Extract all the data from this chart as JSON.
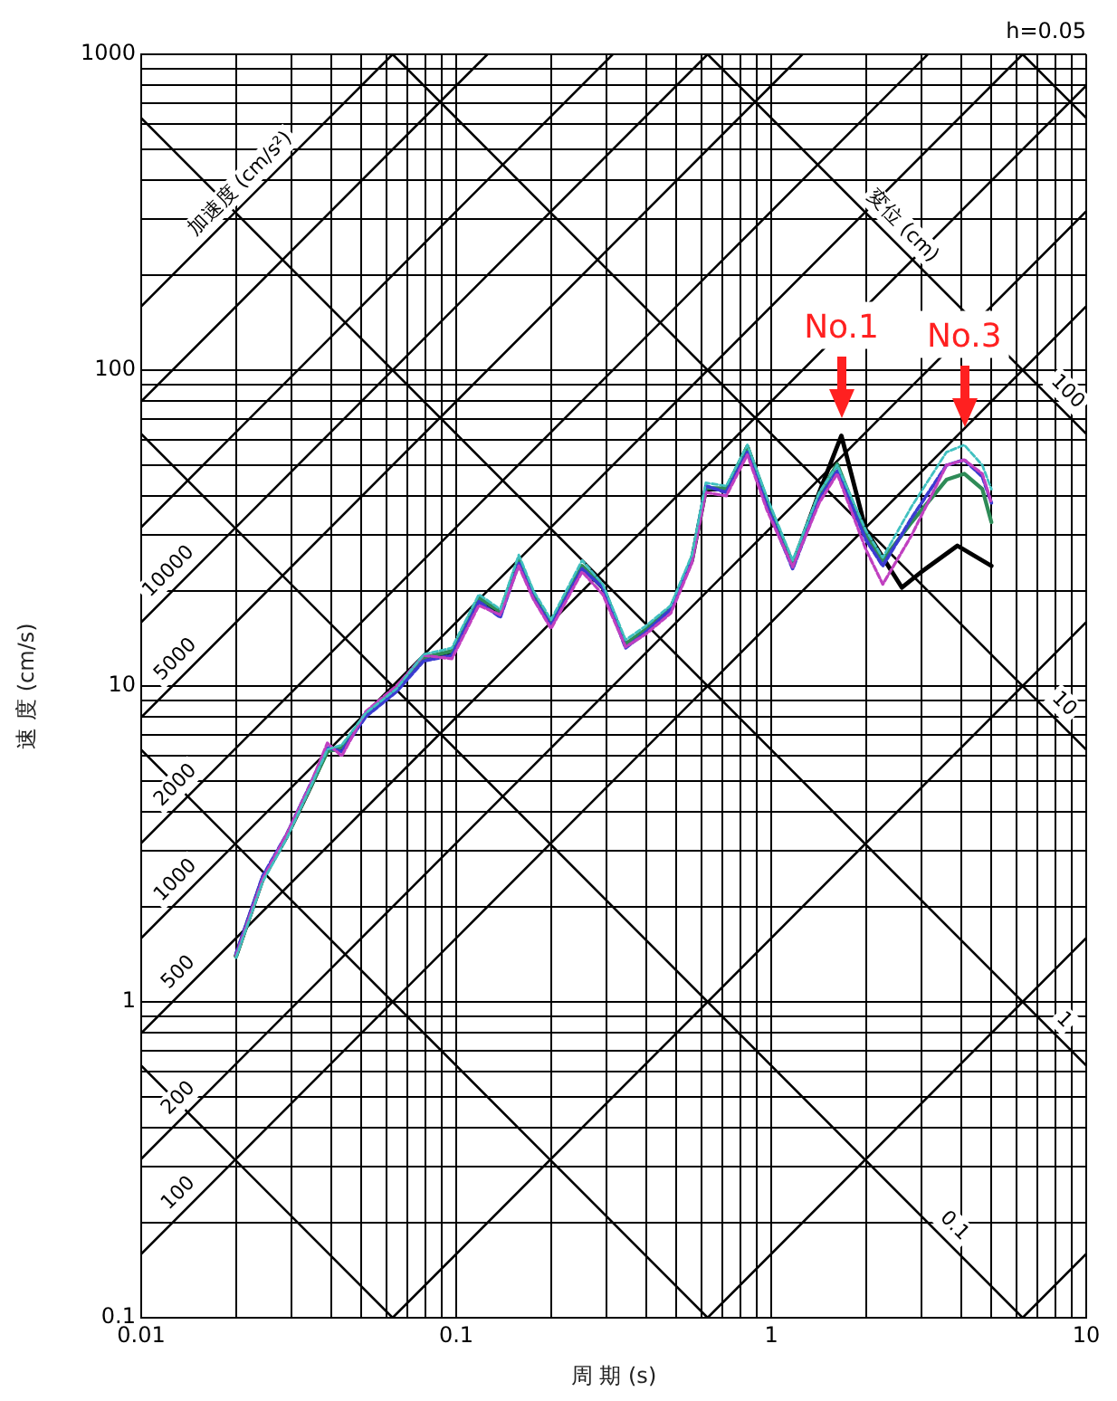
{
  "chart_data": {
    "type": "line",
    "xlabel": "周 期 (s)",
    "ylabel": "速 度 (cm/s)",
    "log": "xy",
    "grid": true,
    "marker": "none",
    "line_style": "solid",
    "xlim": [
      0.01,
      10
    ],
    "ylim": [
      0.1,
      1000
    ],
    "xticks": [
      0.01,
      {
        "value": 0.02,
        "label": null
      },
      {
        "value": 0.03,
        "label": null
      },
      {
        "value": 0.04,
        "label": null
      },
      {
        "value": 0.05,
        "label": null
      },
      {
        "value": 0.06,
        "label": null
      },
      {
        "value": 0.07,
        "label": null
      },
      {
        "value": 0.08,
        "label": null
      },
      {
        "value": 0.09,
        "label": null
      },
      0.1,
      {
        "value": 0.2,
        "label": null
      },
      {
        "value": 0.3,
        "label": null
      },
      {
        "value": 0.4,
        "label": null
      },
      {
        "value": 0.5,
        "label": null
      },
      {
        "value": 0.6,
        "label": null
      },
      {
        "value": 0.7,
        "label": null
      },
      {
        "value": 0.8,
        "label": null
      },
      {
        "value": 0.9,
        "label": null
      },
      1,
      {
        "value": 2,
        "label": null
      },
      {
        "value": 3,
        "label": null
      },
      {
        "value": 4,
        "label": null
      },
      {
        "value": 5,
        "label": null
      },
      {
        "value": 6,
        "label": null
      },
      {
        "value": 7,
        "label": null
      },
      {
        "value": 8,
        "label": null
      },
      {
        "value": 9,
        "label": null
      },
      10
    ],
    "yticks": [
      0.1,
      {
        "value": 0.2,
        "label": null
      },
      {
        "value": 0.3,
        "label": null
      },
      {
        "value": 0.4,
        "label": null
      },
      {
        "value": 0.5,
        "label": null
      },
      {
        "value": 0.6,
        "label": null
      },
      {
        "value": 0.7,
        "label": null
      },
      {
        "value": 0.8,
        "label": null
      },
      {
        "value": 0.9,
        "label": null
      },
      1,
      {
        "value": 2,
        "label": null
      },
      {
        "value": 3,
        "label": null
      },
      {
        "value": 4,
        "label": null
      },
      {
        "value": 5,
        "label": null
      },
      {
        "value": 6,
        "label": null
      },
      {
        "value": 7,
        "label": null
      },
      {
        "value": 8,
        "label": null
      },
      {
        "value": 9,
        "label": null
      },
      10,
      {
        "value": 20,
        "label": null
      },
      {
        "value": 30,
        "label": null
      },
      {
        "value": 40,
        "label": null
      },
      {
        "value": 50,
        "label": null
      },
      {
        "value": 60,
        "label": null
      },
      {
        "value": 70,
        "label": null
      },
      {
        "value": 80,
        "label": null
      },
      {
        "value": 90,
        "label": null
      },
      100,
      {
        "value": 200,
        "label": null
      },
      {
        "value": 300,
        "label": null
      },
      {
        "value": 400,
        "label": null
      },
      {
        "value": 500,
        "label": null
      },
      {
        "value": 600,
        "label": null
      },
      {
        "value": 700,
        "label": null
      },
      {
        "value": 800,
        "label": null
      },
      {
        "value": 900,
        "label": null
      },
      1000
    ],
    "annotations": [
      "h=0.05",
      {
        "text": "加速度 (cm/s²)",
        "x": 0.0225,
        "y": 358.1
      },
      {
        "text": "変位 (cm)",
        "x": 2.4,
        "y": 261.8
      },
      {
        "text": "10000",
        "x": 0.0133,
        "y": 21.17
      },
      {
        "text": "5000",
        "x": 0.014,
        "y": 11.14
      },
      {
        "text": "2000",
        "x": 0.014,
        "y": 4.456
      },
      {
        "text": "1000",
        "x": 0.014,
        "y": 2.228
      },
      {
        "text": "500",
        "x": 0.0143,
        "y": 1.138
      },
      {
        "text": "200",
        "x": 0.0143,
        "y": 0.4552
      },
      {
        "text": "100",
        "x": 0.0143,
        "y": 0.2276
      },
      {
        "text": "100",
        "x": 8,
        "y": 78.54
      },
      {
        "text": "10",
        "x": 7.8,
        "y": 8.055
      },
      {
        "text": "1",
        "x": 7.8,
        "y": 0.8055
      },
      {
        "text": "0.1",
        "x": 3.5,
        "y": 0.1795
      },
      {
        "text": "No.1",
        "x": 1.67,
        "y": 62
      },
      {
        "text": "No.3",
        "x": 4.1,
        "y": 58
      }
    ],
    "x": [
      0.02,
      0.0243,
      0.029,
      0.0345,
      0.039,
      0.0433,
      0.0516,
      0.0646,
      0.0788,
      0.0969,
      0.118,
      0.138,
      0.158,
      0.176,
      0.2,
      0.251,
      0.292,
      0.345,
      0.4,
      0.48,
      0.56,
      0.62,
      0.72,
      0.84,
      0.97,
      1.17,
      1.42,
      1.62,
      2.0,
      2.26,
      2.79,
      3.6,
      4.1,
      4.68,
      5.0
    ],
    "series": [
      {
        "type": "line",
        "color": "#000000",
        "x": [
          6.283,
          10
        ],
        "values": [
          0.1,
          0.1592
        ]
      },
      {
        "type": "line",
        "color": "#000000",
        "x": [
          0.6283,
          10
        ],
        "values": [
          0.1,
          1.592
        ]
      },
      {
        "type": "line",
        "color": "#000000",
        "x": [
          0.06283,
          10
        ],
        "values": [
          0.1,
          15.92
        ]
      },
      {
        "type": "line",
        "color": "#000000",
        "x": [
          0.01,
          10
        ],
        "values": [
          0.1592,
          159.2
        ]
      },
      {
        "type": "line",
        "color": "#000000",
        "x": [
          0.01,
          10
        ],
        "values": [
          0.3183,
          318.3
        ]
      },
      {
        "type": "line",
        "color": "#000000",
        "x": [
          0.01,
          10
        ],
        "values": [
          0.7958,
          795.8
        ]
      },
      {
        "type": "line",
        "color": "#000000",
        "x": [
          0.01,
          6.283
        ],
        "values": [
          1.592,
          1000
        ]
      },
      {
        "type": "line",
        "color": "#000000",
        "x": [
          0.01,
          3.1416
        ],
        "values": [
          3.183,
          1000
        ]
      },
      {
        "type": "line",
        "color": "#000000",
        "x": [
          0.01,
          1.2566
        ],
        "values": [
          7.958,
          1000
        ]
      },
      {
        "type": "line",
        "color": "#000000",
        "x": [
          0.01,
          0.6283
        ],
        "values": [
          15.92,
          1000
        ]
      },
      {
        "type": "line",
        "color": "#000000",
        "x": [
          0.01,
          0.31416
        ],
        "values": [
          31.83,
          1000
        ]
      },
      {
        "type": "line",
        "color": "#000000",
        "x": [
          0.01,
          0.12566
        ],
        "values": [
          79.58,
          1000
        ]
      },
      {
        "type": "line",
        "color": "#000000",
        "x": [
          0.01,
          0.06283
        ],
        "values": [
          159.2,
          1000
        ]
      },
      {
        "type": "line",
        "color": "#000000",
        "x": [
          0.01,
          0.06283
        ],
        "values": [
          0.6283,
          0.1
        ]
      },
      {
        "type": "line",
        "color": "#000000",
        "x": [
          0.01,
          0.6283
        ],
        "values": [
          6.283,
          0.1
        ]
      },
      {
        "type": "line",
        "color": "#000000",
        "x": [
          0.01,
          6.283
        ],
        "values": [
          62.83,
          0.1
        ]
      },
      {
        "type": "line",
        "color": "#000000",
        "x": [
          0.01,
          10
        ],
        "values": [
          628.3,
          0.6283
        ]
      },
      {
        "type": "line",
        "color": "#000000",
        "x": [
          0.06283,
          10
        ],
        "values": [
          1000,
          6.283
        ]
      },
      {
        "type": "line",
        "color": "#000000",
        "x": [
          0.6283,
          10
        ],
        "values": [
          1000,
          62.83
        ]
      },
      {
        "type": "line",
        "color": "#000000",
        "x": [
          6.283,
          10
        ],
        "values": [
          1000,
          628.3
        ]
      },
      {
        "color": "#000000",
        "x": [
          0.02,
          0.0243,
          0.029,
          0.0345,
          0.039,
          0.0433,
          0.0516,
          0.0646,
          0.0788,
          0.0969,
          0.118,
          0.138,
          0.158,
          0.176,
          0.2,
          0.251,
          0.292,
          0.345,
          0.4,
          0.48,
          0.56,
          0.62,
          0.72,
          0.84,
          0.97,
          1.17,
          1.42,
          1.67,
          2.0,
          2.6,
          3.0,
          3.9,
          5.0
        ],
        "values": [
          1.4,
          2.45,
          3.35,
          4.8,
          6.3,
          6.3,
          8.1,
          9.7,
          12.2,
          12.7,
          18.8,
          17,
          25,
          19.3,
          15.6,
          23.8,
          20.5,
          13.5,
          15,
          17.6,
          25,
          42,
          42,
          57,
          38,
          24.2,
          41,
          62,
          31,
          20.5,
          23,
          27.8,
          24
        ]
      },
      {
        "color": "#2e8b57",
        "values": [
          1.39,
          2.46,
          3.36,
          4.8,
          6.2,
          6.4,
          8.1,
          9.7,
          12.3,
          12.9,
          19,
          17.2,
          25.3,
          19.5,
          15.8,
          24,
          20.7,
          13.6,
          15.1,
          17.7,
          25.3,
          42.4,
          42.2,
          57.4,
          38.7,
          24.4,
          40.4,
          50.4,
          29.7,
          25,
          33,
          45,
          47,
          42,
          33
        ]
      },
      {
        "color": "#3b3bd1",
        "line_style": "dashed",
        "values": [
          1.42,
          2.5,
          3.4,
          4.9,
          6.4,
          6.2,
          8.0,
          9.6,
          12.0,
          12.5,
          18.5,
          16.5,
          24.5,
          19,
          15.5,
          23.5,
          20.5,
          13.2,
          14.8,
          17.5,
          25,
          43,
          41,
          55,
          37,
          23.5,
          39,
          48,
          29,
          24,
          34,
          50,
          52,
          46,
          38
        ]
      },
      {
        "color": "#c040c0",
        "line_style": "dashed",
        "values": [
          1.4,
          2.45,
          3.4,
          4.9,
          6.6,
          6.0,
          8.3,
          10,
          12.5,
          12.2,
          18,
          16.8,
          24,
          18.8,
          15.2,
          23,
          19.5,
          13.3,
          14.6,
          17,
          24.5,
          41,
          40,
          54,
          36,
          23.8,
          38,
          47,
          27,
          21,
          30,
          50,
          52,
          47,
          38
        ]
      },
      {
        "color": "#40c0c0",
        "line_style": "dashed",
        "values": [
          1.38,
          2.4,
          3.3,
          4.8,
          6.3,
          6.5,
          8.2,
          9.8,
          12.6,
          13.2,
          19.5,
          17.5,
          26,
          20,
          16.2,
          25,
          21,
          14,
          15.5,
          18,
          26,
          44,
          43,
          58,
          39.5,
          25,
          41,
          50,
          31,
          25.5,
          37,
          55,
          58,
          50,
          42
        ]
      }
    ]
  }
}
